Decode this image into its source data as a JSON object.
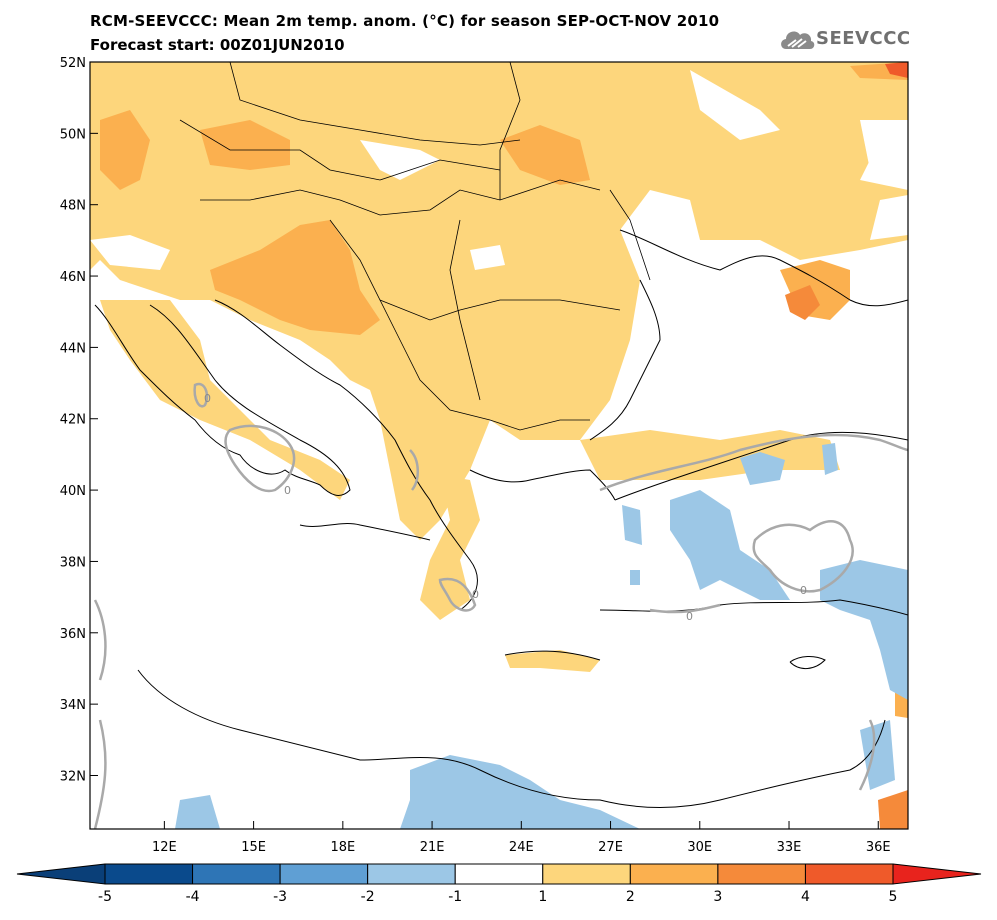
{
  "header": {
    "title": "RCM-SEEVCCC: Mean 2m temp. anom. (°C) for season SEP-OCT-NOV 2010",
    "subtitle": "Forecast start: 00Z01JUN2010"
  },
  "logo": {
    "text": "SEEVCCC",
    "icon": "cloud-icon"
  },
  "map_data": {
    "type": "map",
    "projection": "lat-lon",
    "lon_range": [
      9.5,
      37.0
    ],
    "lat_range": [
      30.5,
      52.0
    ],
    "lat_ticks": [
      {
        "value": 52,
        "label": "52N"
      },
      {
        "value": 50,
        "label": "50N"
      },
      {
        "value": 48,
        "label": "48N"
      },
      {
        "value": 46,
        "label": "46N"
      },
      {
        "value": 44,
        "label": "44N"
      },
      {
        "value": 42,
        "label": "42N"
      },
      {
        "value": 40,
        "label": "40N"
      },
      {
        "value": 38,
        "label": "38N"
      },
      {
        "value": 36,
        "label": "36N"
      },
      {
        "value": 34,
        "label": "34N"
      },
      {
        "value": 32,
        "label": "32N"
      }
    ],
    "lon_ticks": [
      {
        "value": 12,
        "label": "12E"
      },
      {
        "value": 15,
        "label": "15E"
      },
      {
        "value": 18,
        "label": "18E"
      },
      {
        "value": 21,
        "label": "21E"
      },
      {
        "value": 24,
        "label": "24E"
      },
      {
        "value": 27,
        "label": "27E"
      },
      {
        "value": 30,
        "label": "30E"
      },
      {
        "value": 33,
        "label": "33E"
      },
      {
        "value": 36,
        "label": "36E"
      }
    ],
    "contour_labels": [
      "0",
      "0",
      "0",
      "0",
      "0"
    ]
  },
  "colorbar": {
    "labels": [
      "-5",
      "-4",
      "-3",
      "-2",
      "-1",
      "1",
      "2",
      "3",
      "4",
      "5"
    ],
    "colors": [
      "#0a4a8c",
      "#2e75b6",
      "#5f9fd4",
      "#9cc7e6",
      "#ffffff",
      "#fdd67c",
      "#fbb04f",
      "#f58a3a",
      "#ef5a2a"
    ],
    "under_color": "#0a3f78",
    "over_color": "#e8231d"
  }
}
